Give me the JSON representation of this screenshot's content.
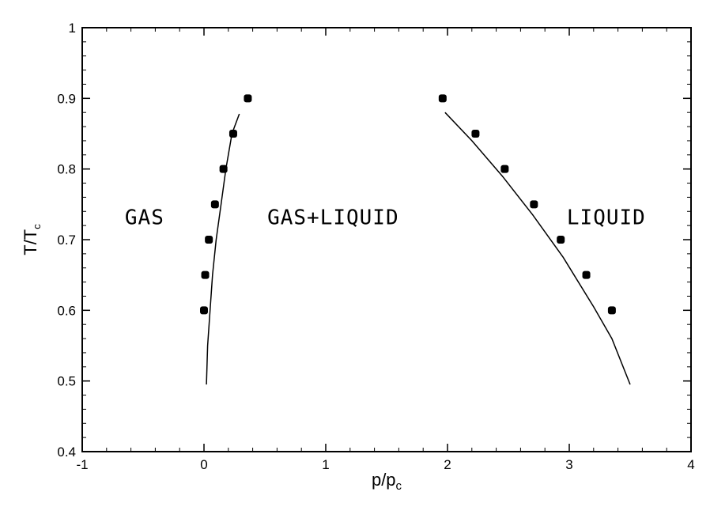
{
  "chart_data": {
    "type": "scatter",
    "title": "",
    "xlabel": "p/p",
    "xlabel_sub": "c",
    "ylabel": "T/T",
    "ylabel_sub": "c",
    "xlim": [
      -1,
      4
    ],
    "ylim": [
      0.4,
      1
    ],
    "x_ticks": [
      -1,
      0,
      1,
      2,
      3,
      4
    ],
    "x_tick_labels": [
      "-1",
      "0",
      "1",
      "2",
      "3",
      "4"
    ],
    "y_ticks": [
      0.4,
      0.5,
      0.6,
      0.7,
      0.8,
      0.9,
      1
    ],
    "y_tick_labels": [
      "0.4",
      "0.5",
      "0.6",
      "0.7",
      "0.8",
      "0.9",
      "1"
    ],
    "grid": false,
    "legend": "none",
    "annotations": [
      {
        "text": "GAS",
        "x": -0.65,
        "y": 0.722
      },
      {
        "text": "GAS+LIQUID",
        "x": 0.52,
        "y": 0.722
      },
      {
        "text": "LIQUID",
        "x": 2.98,
        "y": 0.722
      }
    ],
    "series": [
      {
        "kind": "points",
        "color": "#000000",
        "points": [
          [
            0.0,
            0.6
          ],
          [
            0.01,
            0.65
          ],
          [
            0.04,
            0.7
          ],
          [
            0.09,
            0.75
          ],
          [
            0.16,
            0.8
          ],
          [
            0.24,
            0.85
          ],
          [
            0.36,
            0.9
          ]
        ]
      },
      {
        "kind": "points",
        "color": "#000000",
        "points": [
          [
            1.96,
            0.9
          ],
          [
            2.23,
            0.85
          ],
          [
            2.47,
            0.8
          ],
          [
            2.71,
            0.75
          ],
          [
            2.93,
            0.7
          ],
          [
            3.14,
            0.65
          ],
          [
            3.35,
            0.6
          ]
        ]
      },
      {
        "kind": "line",
        "color": "#000000",
        "points": [
          [
            0.02,
            0.495
          ],
          [
            0.03,
            0.55
          ],
          [
            0.05,
            0.6
          ],
          [
            0.07,
            0.65
          ],
          [
            0.1,
            0.7
          ],
          [
            0.14,
            0.75
          ],
          [
            0.18,
            0.8
          ],
          [
            0.23,
            0.85
          ],
          [
            0.29,
            0.878
          ]
        ]
      },
      {
        "kind": "line",
        "color": "#000000",
        "points": [
          [
            1.98,
            0.88
          ],
          [
            2.2,
            0.84
          ],
          [
            2.45,
            0.79
          ],
          [
            2.7,
            0.735
          ],
          [
            2.95,
            0.675
          ],
          [
            3.2,
            0.605
          ],
          [
            3.35,
            0.56
          ],
          [
            3.5,
            0.495
          ]
        ]
      }
    ]
  }
}
